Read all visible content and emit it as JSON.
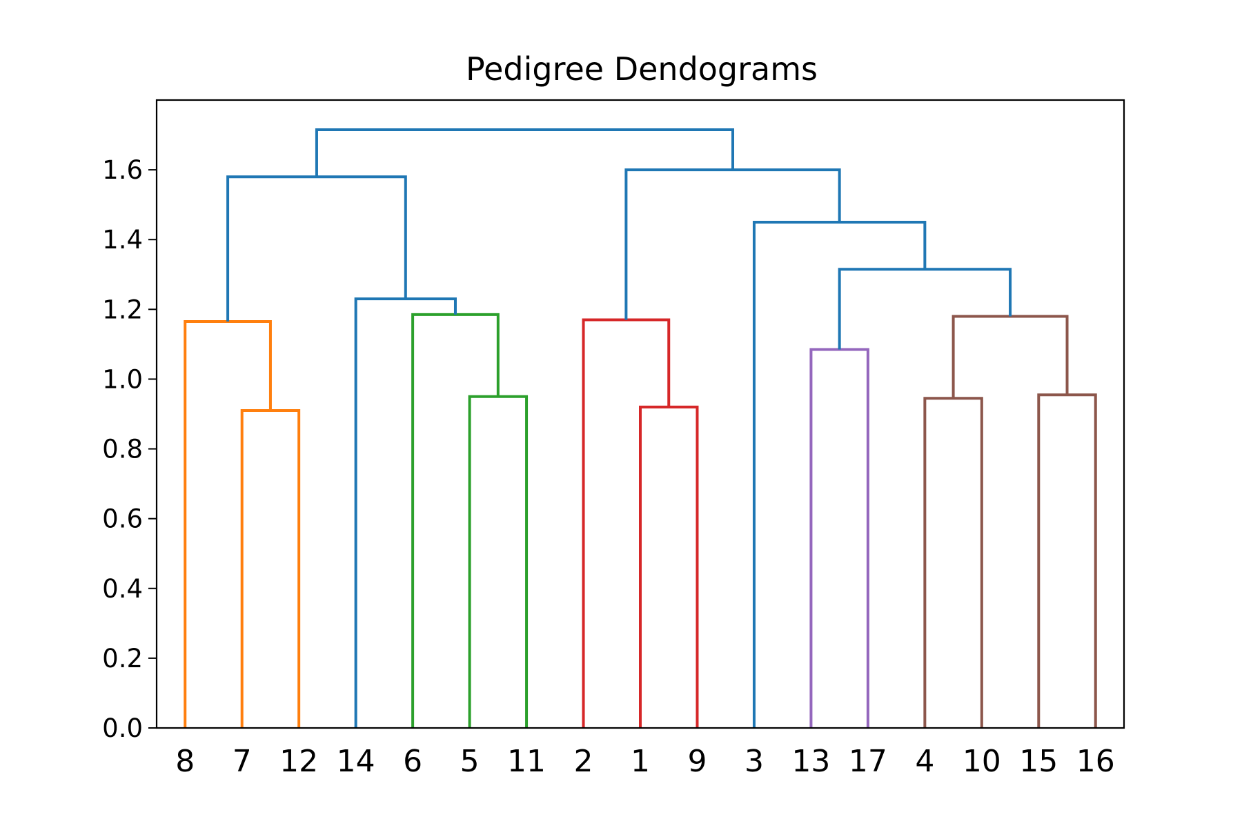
{
  "chart_data": {
    "type": "dendrogram",
    "title": "Pedigree Dendograms",
    "xlabel": "",
    "ylabel": "",
    "ylim": [
      0,
      1.8
    ],
    "yticks": [
      "0.0",
      "0.2",
      "0.4",
      "0.6",
      "0.8",
      "1.0",
      "1.2",
      "1.4",
      "1.6"
    ],
    "leaves": [
      "8",
      "7",
      "12",
      "14",
      "6",
      "5",
      "11",
      "2",
      "1",
      "9",
      "3",
      "13",
      "17",
      "4",
      "10",
      "15",
      "16"
    ],
    "grid": false,
    "links": [
      {
        "a": 1,
        "b": 2,
        "h": 0.91,
        "color": "#ff7f0e"
      },
      {
        "a": 0,
        "b": 17,
        "h": 1.165,
        "color": "#ff7f0e"
      },
      {
        "a": 5,
        "b": 6,
        "h": 0.95,
        "color": "#2ca02c"
      },
      {
        "a": 4,
        "b": 19,
        "h": 1.185,
        "color": "#2ca02c"
      },
      {
        "a": 3,
        "b": 20,
        "h": 1.23,
        "color": "#1f77b4"
      },
      {
        "a": 18,
        "b": 21,
        "h": 1.58,
        "color": "#1f77b4"
      },
      {
        "a": 8,
        "b": 9,
        "h": 0.92,
        "color": "#d62728"
      },
      {
        "a": 7,
        "b": 23,
        "h": 1.17,
        "color": "#d62728"
      },
      {
        "a": 11,
        "b": 12,
        "h": 1.085,
        "color": "#9467bd"
      },
      {
        "a": 13,
        "b": 14,
        "h": 0.945,
        "color": "#8c564b"
      },
      {
        "a": 15,
        "b": 16,
        "h": 0.955,
        "color": "#8c564b"
      },
      {
        "a": 26,
        "b": 27,
        "h": 1.18,
        "color": "#8c564b"
      },
      {
        "a": 25,
        "b": 28,
        "h": 1.315,
        "color": "#1f77b4"
      },
      {
        "a": 10,
        "b": 29,
        "h": 1.45,
        "color": "#1f77b4"
      },
      {
        "a": 24,
        "b": 30,
        "h": 1.6,
        "color": "#1f77b4"
      },
      {
        "a": 22,
        "b": 31,
        "h": 1.715,
        "color": "#1f77b4"
      }
    ]
  }
}
